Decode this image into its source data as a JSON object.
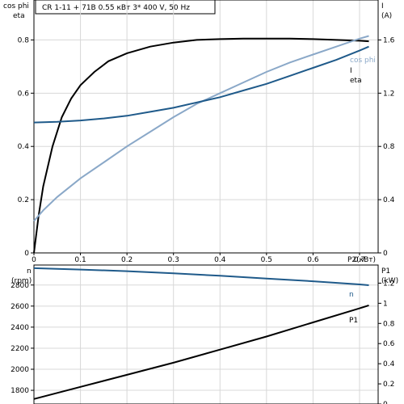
{
  "title": "CR 1-11 + 71B    0.55 кВт   3* 400 V, 50 Hz",
  "colors": {
    "eta": "#000000",
    "cos_phi": "#8aa8c8",
    "current": "#1f5a8a",
    "n": "#1f5a8a",
    "p1": "#000000",
    "grid": "#d8d8d8"
  },
  "chart_data": [
    {
      "type": "line",
      "x_label": "P2(кВт)",
      "x_ticks": [
        "0",
        "0.1",
        "0.2",
        "0.3",
        "0.4",
        "0.5",
        "0.6",
        "0.7"
      ],
      "xlim": [
        0,
        0.74
      ],
      "left_axis": {
        "label_line1": "cos phi",
        "label_line2": "eta",
        "ylim": [
          0,
          0.95
        ],
        "ticks": [
          "0",
          "0.2",
          "0.4",
          "0.6",
          "0.8"
        ]
      },
      "right_axis": {
        "label_line1": "I",
        "label_line2": "(A)",
        "ylim": [
          0,
          1.9
        ],
        "ticks": [
          "0",
          "0.4",
          "0.8",
          "1.2",
          "1.6"
        ]
      },
      "grid": true,
      "series": [
        {
          "name": "eta",
          "axis": "left",
          "x": [
            0,
            0.01,
            0.02,
            0.04,
            0.06,
            0.08,
            0.1,
            0.13,
            0.16,
            0.2,
            0.25,
            0.3,
            0.35,
            0.4,
            0.45,
            0.5,
            0.55,
            0.6,
            0.65,
            0.7,
            0.72
          ],
          "y": [
            0,
            0.14,
            0.25,
            0.4,
            0.51,
            0.58,
            0.63,
            0.68,
            0.72,
            0.75,
            0.775,
            0.79,
            0.8,
            0.803,
            0.805,
            0.805,
            0.805,
            0.803,
            0.8,
            0.797,
            0.795
          ]
        },
        {
          "name": "cos phi",
          "axis": "left",
          "x": [
            0,
            0.02,
            0.05,
            0.1,
            0.15,
            0.2,
            0.25,
            0.3,
            0.35,
            0.4,
            0.45,
            0.5,
            0.55,
            0.6,
            0.65,
            0.7,
            0.72
          ],
          "y": [
            0.12,
            0.16,
            0.21,
            0.28,
            0.34,
            0.4,
            0.455,
            0.51,
            0.56,
            0.6,
            0.64,
            0.68,
            0.715,
            0.745,
            0.775,
            0.805,
            0.815
          ]
        },
        {
          "name": "I",
          "axis": "right",
          "x": [
            0,
            0.05,
            0.1,
            0.15,
            0.2,
            0.25,
            0.3,
            0.35,
            0.4,
            0.45,
            0.5,
            0.55,
            0.6,
            0.65,
            0.7,
            0.72
          ],
          "y": [
            0.98,
            0.985,
            0.995,
            1.01,
            1.03,
            1.06,
            1.09,
            1.13,
            1.17,
            1.22,
            1.27,
            1.33,
            1.39,
            1.45,
            1.52,
            1.55
          ]
        }
      ],
      "labels": {
        "cos_phi": "cos phi",
        "current": "I",
        "eta": "eta"
      }
    },
    {
      "type": "line",
      "xlim": [
        0,
        0.74
      ],
      "left_axis": {
        "label_line1": "n",
        "label_line2": "(rpm)",
        "ylim": [
          1670,
          2990
        ],
        "ticks": [
          "1800",
          "2000",
          "2200",
          "2400",
          "2600",
          "2800"
        ]
      },
      "right_axis": {
        "label_line1": "P1",
        "label_line2": "(kW)",
        "ylim": [
          0,
          1.38
        ],
        "ticks": [
          "0",
          "0.2",
          "0.4",
          "0.6",
          "0.8",
          "1",
          "1.2"
        ]
      },
      "grid": true,
      "series": [
        {
          "name": "n",
          "axis": "left",
          "x": [
            0,
            0.1,
            0.2,
            0.3,
            0.4,
            0.5,
            0.6,
            0.7,
            0.72
          ],
          "y": [
            2960,
            2947,
            2932,
            2912,
            2888,
            2862,
            2836,
            2806,
            2798
          ]
        },
        {
          "name": "P1",
          "axis": "right",
          "x": [
            0,
            0.1,
            0.2,
            0.3,
            0.4,
            0.5,
            0.6,
            0.7,
            0.72
          ],
          "y": [
            0.05,
            0.17,
            0.29,
            0.41,
            0.54,
            0.67,
            0.81,
            0.95,
            0.98
          ]
        }
      ],
      "labels": {
        "n": "n",
        "p1": "P1"
      }
    }
  ]
}
